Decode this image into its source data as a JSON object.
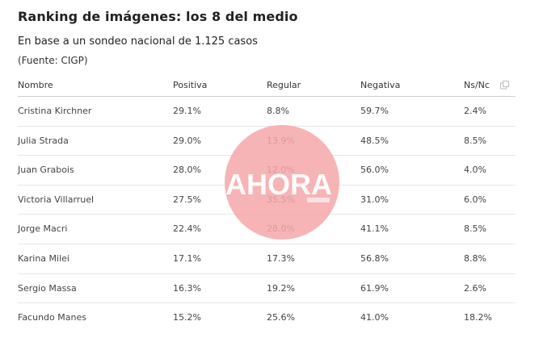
{
  "title": "Ranking de imágenes: los 8 del medio",
  "subtitle": "En base a un sondeo nacional de 1.125 casos",
  "source": "(Fuente: CIGP)",
  "icons": {
    "copy": "copy-icon"
  },
  "watermark": {
    "text": "AHORA",
    "color": "#f4a7aa"
  },
  "chart_data": {
    "type": "table",
    "columns": [
      "Nombre",
      "Positiva",
      "Regular",
      "Negativa",
      "Ns/Nc"
    ],
    "rows": [
      [
        "Cristina Kirchner",
        "29.1%",
        "8.8%",
        "59.7%",
        "2.4%"
      ],
      [
        "Julia Strada",
        "29.0%",
        "13.9%",
        "48.5%",
        "8.5%"
      ],
      [
        "Juan Grabois",
        "28.0%",
        "12.0%",
        "56.0%",
        "4.0%"
      ],
      [
        "Victoria Villarruel",
        "27.5%",
        "35.5%",
        "31.0%",
        "6.0%"
      ],
      [
        "Jorge Macri",
        "22.4%",
        "28.0%",
        "41.1%",
        "8.5%"
      ],
      [
        "Karina Milei",
        "17.1%",
        "17.3%",
        "56.8%",
        "8.8%"
      ],
      [
        "Sergio Massa",
        "16.3%",
        "19.2%",
        "61.9%",
        "2.6%"
      ],
      [
        "Facundo Manes",
        "15.2%",
        "25.6%",
        "41.0%",
        "18.2%"
      ]
    ]
  }
}
